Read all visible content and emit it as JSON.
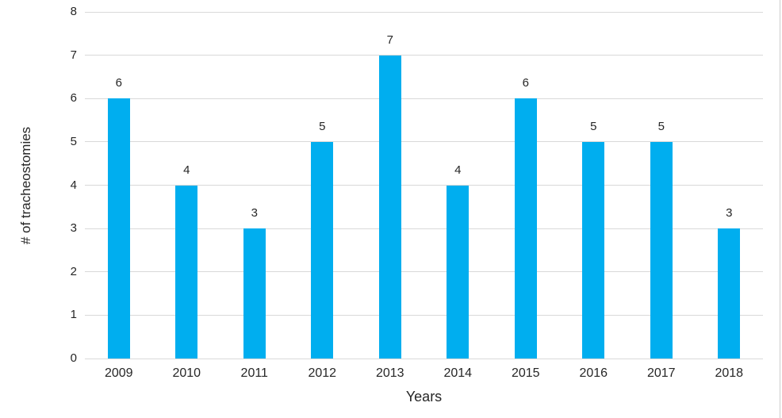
{
  "chart_data": {
    "type": "bar",
    "title": "",
    "categories": [
      "2009",
      "2010",
      "2011",
      "2012",
      "2013",
      "2014",
      "2015",
      "2016",
      "2017",
      "2018"
    ],
    "values": [
      6,
      4,
      3,
      5,
      7,
      4,
      6,
      5,
      5,
      3
    ],
    "xlabel": "Years",
    "ylabel": "# of tracheostomies",
    "ylim": [
      0,
      8
    ],
    "y_ticks": [
      0,
      1,
      2,
      3,
      4,
      5,
      6,
      7,
      8
    ],
    "grid": true,
    "data_labels": true,
    "legend": "none",
    "colors": {
      "bar": "#00AEEF",
      "gridline": "#D9D9D9",
      "text": "#262626",
      "figure_edge": "#CCCCCC"
    }
  }
}
